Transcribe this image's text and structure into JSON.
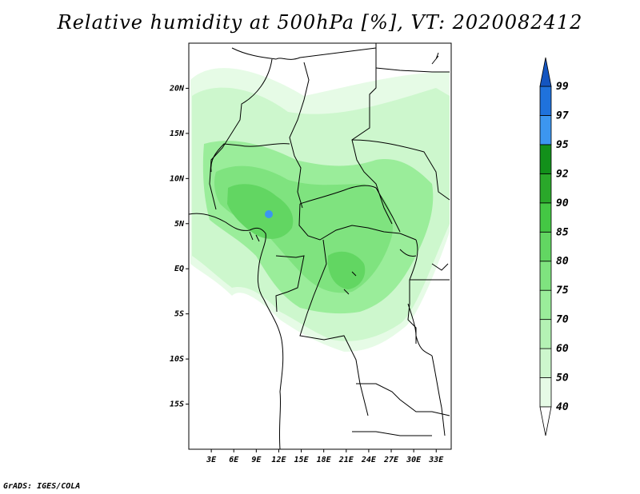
{
  "title": "Relative humidity at 500hPa [%], VT: 2020082412",
  "credit": "GrADS: IGES/COLA",
  "map": {
    "lat_ticks": [
      "20N",
      "15N",
      "10N",
      "5N",
      "EQ",
      "5S",
      "10S",
      "15S"
    ],
    "lat_values": [
      20,
      15,
      10,
      5,
      0,
      -5,
      -10,
      -15
    ],
    "lon_ticks": [
      "3E",
      "6E",
      "9E",
      "12E",
      "15E",
      "18E",
      "21E",
      "24E",
      "27E",
      "30E",
      "33E"
    ],
    "lon_values": [
      3,
      6,
      9,
      12,
      15,
      18,
      21,
      24,
      27,
      30,
      33
    ],
    "lon_range": [
      0,
      35
    ],
    "lat_range": [
      -20,
      25
    ]
  },
  "colorbar": {
    "labels": [
      "40",
      "50",
      "60",
      "70",
      "75",
      "80",
      "85",
      "90",
      "92",
      "95",
      "97",
      "99"
    ],
    "levels": [
      40,
      50,
      60,
      70,
      75,
      80,
      85,
      90,
      92,
      95,
      97,
      99
    ],
    "colors": [
      "#ffffff",
      "#e6fbe6",
      "#cdf7cd",
      "#b4f2b4",
      "#9aed9a",
      "#7fe37f",
      "#62d662",
      "#44c744",
      "#2aa82a",
      "#12901a",
      "#3c96f0",
      "#1f72dc",
      "#1455c0"
    ]
  },
  "colors": {
    "humid_low": "#cdf7cd",
    "humid_mid": "#9aed9a",
    "humid_high": "#62d662",
    "humid_peak": "#3c96f0"
  }
}
